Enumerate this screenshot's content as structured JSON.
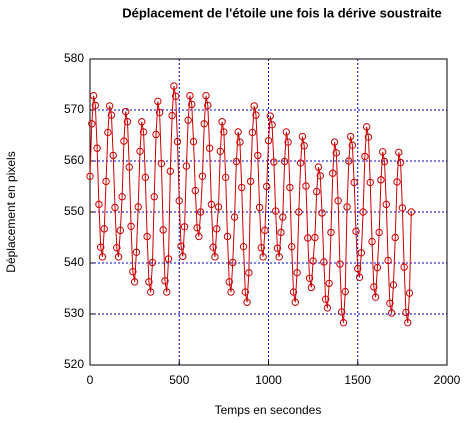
{
  "chart_data": {
    "type": "line",
    "title": "Déplacement de l'étoile une fois la dérive soustraite",
    "x_label": "Temps en secondes",
    "y_label": "Déplacement en pixels",
    "xlim": [
      0,
      2000
    ],
    "xticks": [
      0,
      500,
      1000,
      1500,
      2000
    ],
    "ylim": [
      520,
      580
    ],
    "yticks": [
      520,
      530,
      540,
      550,
      560,
      570,
      580
    ],
    "grid": true,
    "grid_color": "#0000c0",
    "marker": "circle",
    "x": [
      0,
      10,
      20,
      30,
      40,
      50,
      60,
      70,
      80,
      90,
      100,
      110,
      120,
      130,
      140,
      150,
      160,
      170,
      180,
      190,
      200,
      210,
      220,
      230,
      240,
      250,
      260,
      270,
      280,
      290,
      300,
      310,
      320,
      330,
      340,
      350,
      360,
      370,
      380,
      390,
      400,
      410,
      420,
      430,
      440,
      450,
      460,
      470,
      480,
      490,
      500,
      510,
      520,
      530,
      540,
      550,
      560,
      570,
      580,
      590,
      600,
      610,
      620,
      630,
      640,
      650,
      660,
      670,
      680,
      690,
      700,
      710,
      720,
      730,
      740,
      750,
      760,
      770,
      780,
      790,
      800,
      810,
      820,
      830,
      840,
      850,
      860,
      870,
      880,
      890,
      900,
      910,
      920,
      930,
      940,
      950,
      960,
      970,
      980,
      990,
      1000,
      1010,
      1020,
      1030,
      1040,
      1050,
      1060,
      1070,
      1080,
      1090,
      1100,
      1110,
      1120,
      1130,
      1140,
      1150,
      1160,
      1170,
      1180,
      1190,
      1200,
      1210,
      1220,
      1230,
      1240,
      1250,
      1260,
      1270,
      1280,
      1290,
      1300,
      1310,
      1320,
      1330,
      1340,
      1350,
      1360,
      1370,
      1380,
      1390,
      1400,
      1410,
      1420,
      1430,
      1440,
      1450,
      1460,
      1470,
      1480,
      1490,
      1500,
      1510,
      1520,
      1530,
      1540,
      1550,
      1560,
      1570,
      1580,
      1590,
      1600,
      1610,
      1620,
      1630,
      1640,
      1650,
      1660,
      1670,
      1680,
      1690,
      1700,
      1710,
      1720,
      1730,
      1740,
      1750,
      1760,
      1770,
      1780,
      1790,
      1800
    ],
    "series": [
      {
        "color": "#cc0000",
        "values": [
          557,
          567.3,
          572.8,
          570.9,
          562.5,
          551.5,
          543.1,
          541.2,
          546.7,
          556,
          565.6,
          570.8,
          569.0,
          561.1,
          550.9,
          543.0,
          541.2,
          546.4,
          553,
          563.9,
          569.7,
          567.7,
          558.8,
          547.2,
          538.3,
          536.3,
          542.1,
          551,
          561.9,
          567.7,
          565.7,
          556.8,
          545.2,
          536.3,
          534.3,
          540.1,
          553,
          565.2,
          571.7,
          569.5,
          559.5,
          546.5,
          536.5,
          534.3,
          540.8,
          558,
          568.9,
          574.7,
          572.7,
          563.8,
          552.2,
          543.3,
          541.3,
          547.1,
          559,
          568.0,
          572.8,
          571.1,
          563.8,
          554.2,
          546.9,
          545.2,
          550.0,
          557,
          567.3,
          572.8,
          570.9,
          562.5,
          551.5,
          543.1,
          541.2,
          546.7,
          551,
          561.9,
          567.7,
          565.7,
          556.8,
          545.2,
          536.3,
          534.3,
          540.1,
          549,
          559.9,
          565.7,
          563.7,
          554.8,
          543.2,
          534.3,
          532.3,
          538.1,
          556,
          565.6,
          570.8,
          569.0,
          561.1,
          550.9,
          543.0,
          541.2,
          546.4,
          555,
          564.0,
          568.8,
          567.1,
          559.8,
          550.2,
          542.9,
          541.2,
          546.0,
          549,
          559.9,
          565.7,
          563.7,
          554.8,
          543.2,
          534.3,
          532.3,
          538.1,
          550,
          559.6,
          564.8,
          563.0,
          555.1,
          544.9,
          537.0,
          535.2,
          540.4,
          545,
          554.0,
          558.8,
          557.1,
          549.8,
          540.2,
          532.9,
          531.2,
          536.0,
          546,
          557.6,
          563.7,
          561.6,
          552.2,
          539.8,
          530.4,
          528.3,
          534.4,
          551,
          560.0,
          564.8,
          563.1,
          555.8,
          546.2,
          538.9,
          537.2,
          542.0,
          550,
          560.9,
          566.7,
          564.7,
          555.8,
          544.2,
          535.3,
          533.3,
          539.1,
          546,
          556.3,
          561.8,
          559.9,
          551.5,
          540.5,
          532.1,
          530.2,
          535.7,
          545,
          555.9,
          561.7,
          559.7,
          550.8,
          539.2,
          530.3,
          528.3,
          534.1,
          550
        ]
      }
    ]
  }
}
